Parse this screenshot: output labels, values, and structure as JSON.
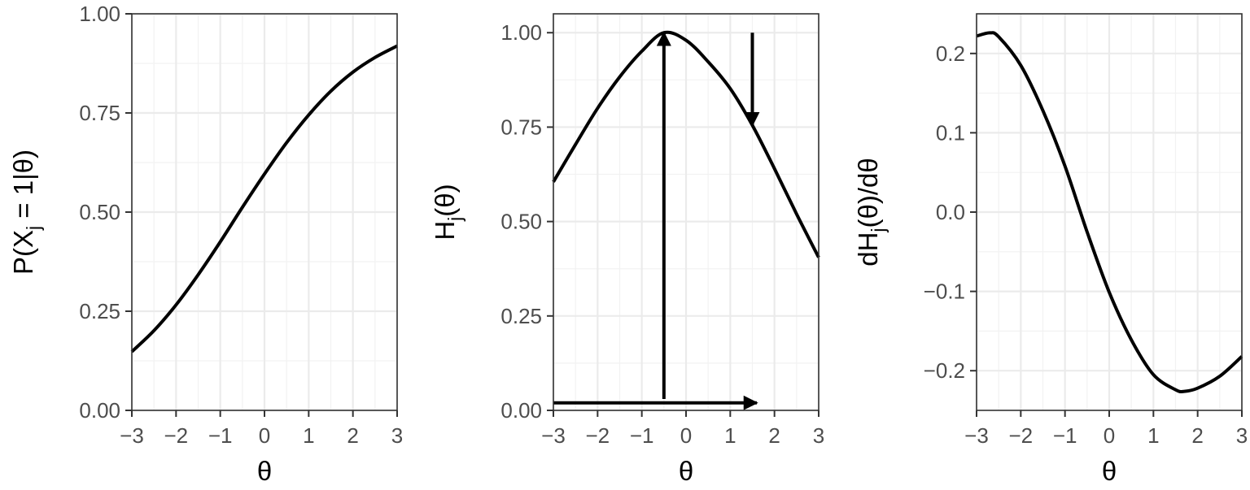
{
  "chart_data": [
    {
      "type": "line",
      "xlabel": "θ",
      "ylabel": {
        "pre": "P(X",
        "sub": "j",
        "post": " = 1|θ)"
      },
      "xlim": [
        -3,
        3
      ],
      "ylim": [
        0,
        1
      ],
      "x_ticks": [
        -3,
        -2,
        -1,
        0,
        1,
        2,
        3
      ],
      "x_tick_labels": [
        "−3",
        "−2",
        "−1",
        "0",
        "1",
        "2",
        "3"
      ],
      "y_ticks": [
        0,
        0.25,
        0.5,
        0.75,
        1
      ],
      "y_tick_labels": [
        "0.00",
        "0.25",
        "0.50",
        "0.75",
        "1.00"
      ],
      "grid": true,
      "series": [
        {
          "color": "#000000",
          "x": [
            -3,
            -2.5,
            -2,
            -1.5,
            -1,
            -0.5,
            0,
            0.5,
            1,
            1.5,
            2,
            2.5,
            3
          ],
          "y": [
            0.148,
            0.201,
            0.266,
            0.342,
            0.425,
            0.512,
            0.596,
            0.675,
            0.745,
            0.805,
            0.853,
            0.89,
            0.919
          ]
        }
      ]
    },
    {
      "type": "line",
      "xlabel": "θ",
      "ylabel": {
        "pre": "H",
        "sub": "j",
        "post": "(θ)"
      },
      "xlim": [
        -3,
        3
      ],
      "ylim": [
        0,
        1.05
      ],
      "x_ticks": [
        -3,
        -2,
        -1,
        0,
        1,
        2,
        3
      ],
      "x_tick_labels": [
        "−3",
        "−2",
        "−1",
        "0",
        "1",
        "2",
        "3"
      ],
      "y_ticks": [
        0,
        0.25,
        0.5,
        0.75,
        1
      ],
      "y_tick_labels": [
        "0.00",
        "0.25",
        "0.50",
        "0.75",
        "1.00"
      ],
      "grid": true,
      "series": [
        {
          "color": "#000000",
          "x": [
            -3,
            -2.5,
            -2,
            -1.5,
            -1,
            -0.5,
            0,
            0.5,
            1,
            1.5,
            2,
            2.5,
            3
          ],
          "y": [
            0.605,
            0.704,
            0.8,
            0.883,
            0.951,
            1.0,
            0.98,
            0.923,
            0.852,
            0.755,
            0.64,
            0.52,
            0.405
          ]
        }
      ],
      "arrows": [
        {
          "from": [
            -0.5,
            0.03
          ],
          "to": [
            -0.5,
            1.0
          ]
        },
        {
          "from": [
            1.5,
            1.0
          ],
          "to": [
            1.5,
            0.755
          ]
        },
        {
          "from": [
            -3,
            0.02
          ],
          "to": [
            1.6,
            0.02
          ]
        }
      ]
    },
    {
      "type": "line",
      "xlabel": "θ",
      "ylabel": {
        "pre": "dH",
        "sub": "j",
        "post": "(θ)/dθ"
      },
      "xlim": [
        -3,
        3
      ],
      "ylim": [
        -0.25,
        0.25
      ],
      "x_ticks": [
        -3,
        -2,
        -1,
        0,
        1,
        2,
        3
      ],
      "x_tick_labels": [
        "−3",
        "−2",
        "−1",
        "0",
        "1",
        "2",
        "3"
      ],
      "y_ticks": [
        -0.2,
        -0.1,
        0,
        0.1,
        0.2
      ],
      "y_tick_labels": [
        "−0.2",
        "−0.1",
        "0.0",
        "0.1",
        "0.2"
      ],
      "grid": true,
      "series": [
        {
          "color": "#000000",
          "x": [
            -3,
            -2.7,
            -2.5,
            -2,
            -1.5,
            -1,
            -0.5,
            0,
            0.5,
            1,
            1.5,
            1.7,
            2,
            2.5,
            3
          ],
          "y": [
            0.222,
            0.226,
            0.221,
            0.185,
            0.128,
            0.058,
            -0.025,
            -0.101,
            -0.161,
            -0.205,
            -0.224,
            -0.226,
            -0.222,
            -0.207,
            -0.182
          ]
        }
      ]
    }
  ]
}
